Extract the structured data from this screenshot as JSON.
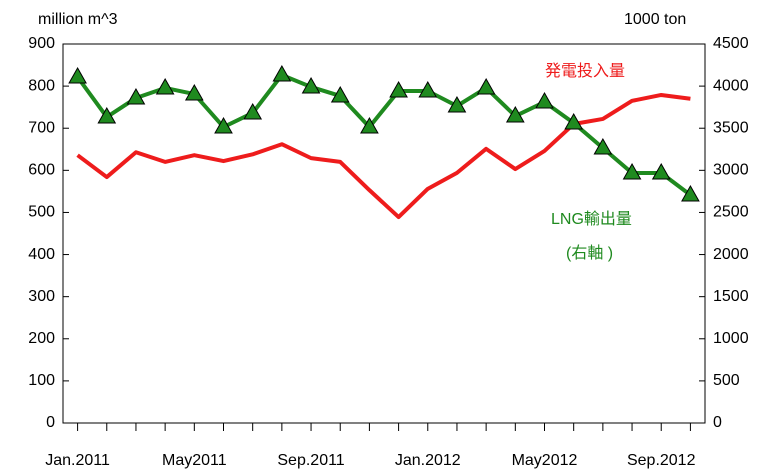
{
  "chart_data": {
    "type": "line",
    "categories": [
      "Jan.2011",
      null,
      null,
      null,
      "May2011",
      null,
      null,
      null,
      "Sep.2011",
      null,
      null,
      null,
      "Jan.2012",
      null,
      null,
      null,
      "May2012",
      null,
      null,
      null,
      "Sep.2012",
      null
    ],
    "series": [
      {
        "name": "発電投入量",
        "color": "#ee1c1c",
        "axis": "y",
        "values": [
          636,
          584,
          643,
          620,
          636,
          622,
          638,
          662,
          629,
          620,
          553,
          489,
          556,
          594,
          651,
          603,
          646,
          710,
          722,
          765,
          779,
          770
        ]
      },
      {
        "name": "LNG輸出量",
        "color": "#1f8a1f",
        "axis": "y2",
        "marker": "triangle",
        "values": [
          4108,
          3633,
          3859,
          3978,
          3906,
          3514,
          3681,
          4132,
          3990,
          3883,
          3514,
          3942,
          3942,
          3764,
          3978,
          3645,
          3811,
          3562,
          3265,
          2968,
          2968,
          2707
        ]
      }
    ],
    "annotations": [
      "million m^3",
      "1000 ton",
      "(右軸 )"
    ],
    "ylim": [
      0,
      900
    ],
    "yticks": [
      0,
      100,
      200,
      300,
      400,
      500,
      600,
      700,
      800,
      900
    ],
    "y2lim": [
      0,
      4500
    ],
    "y2ticks": [
      0,
      500,
      1000,
      1500,
      2000,
      2500,
      3000,
      3500,
      4000,
      4500
    ],
    "grid": false
  }
}
